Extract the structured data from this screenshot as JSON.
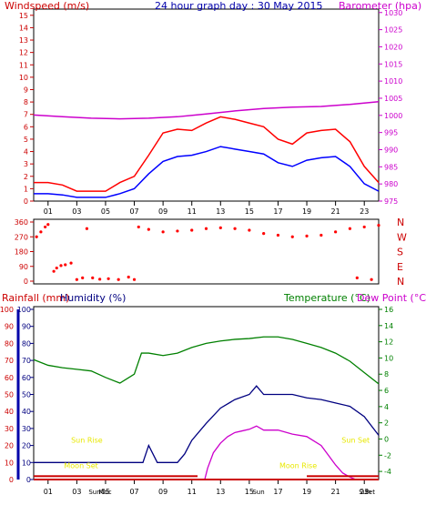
{
  "colors": {
    "wind_high": "#ff0000",
    "wind_avg": "#0000ff",
    "barometer": "#cc00cc",
    "direction": "#ff0000",
    "rain": "#cc0000",
    "humidity": "#000080",
    "temperature": "#008000",
    "dewpoint": "#cc00cc",
    "sun_moon": "#e8e800",
    "axis_blue": "#0000aa",
    "grid": "#c8c8c8"
  },
  "x_ticks": [
    "01",
    "03",
    "05",
    "07",
    "09",
    "11",
    "13",
    "15",
    "17",
    "19",
    "21",
    "23"
  ],
  "chart_data": [
    {
      "type": "line",
      "title": "24 hour graph day : 30 May 2015",
      "y_left_label": "Windspeed (m/s)",
      "y_right_label": "Barometer (hpa)",
      "y_left_ticks": [
        "0",
        "1",
        "2",
        "3",
        "4",
        "5",
        "6",
        "7",
        "8",
        "9",
        "10",
        "11",
        "12",
        "13",
        "14",
        "15"
      ],
      "y_right_ticks": [
        "975",
        "980",
        "985",
        "990",
        "995",
        "1000",
        "1005",
        "1010",
        "1015",
        "1020",
        "1025",
        "1030"
      ],
      "ylim_left": [
        0,
        15.5
      ],
      "ylim_right": [
        975,
        1031
      ],
      "series": [
        {
          "name": "gust",
          "axis": "left",
          "x": [
            0,
            1,
            2,
            3,
            4,
            5,
            6,
            7,
            8,
            9,
            10,
            11,
            12,
            13,
            14,
            15,
            16,
            17,
            18,
            19,
            20,
            21,
            22,
            23,
            24
          ],
          "y": [
            1.5,
            1.5,
            1.3,
            0.8,
            0.8,
            0.8,
            1.5,
            2.0,
            3.7,
            5.5,
            5.8,
            5.7,
            6.3,
            6.8,
            6.6,
            6.3,
            6.0,
            5.0,
            4.6,
            5.5,
            5.7,
            5.8,
            4.8,
            2.8,
            1.5
          ]
        },
        {
          "name": "average",
          "axis": "left",
          "x": [
            0,
            1,
            2,
            3,
            4,
            5,
            6,
            7,
            8,
            9,
            10,
            11,
            12,
            13,
            14,
            15,
            16,
            17,
            18,
            19,
            20,
            21,
            22,
            23,
            24
          ],
          "y": [
            0.6,
            0.6,
            0.5,
            0.3,
            0.3,
            0.3,
            0.6,
            1.0,
            2.2,
            3.2,
            3.6,
            3.7,
            4.0,
            4.4,
            4.2,
            4.0,
            3.8,
            3.1,
            2.8,
            3.3,
            3.5,
            3.6,
            2.8,
            1.4,
            0.8
          ]
        },
        {
          "name": "barometer",
          "axis": "right",
          "x": [
            0,
            2,
            4,
            6,
            8,
            10,
            12,
            14,
            16,
            18,
            20,
            22,
            24
          ],
          "y": [
            1000.1,
            999.6,
            999.2,
            999.0,
            999.2,
            999.6,
            1000.4,
            1001.3,
            1002.0,
            1002.4,
            1002.6,
            1003.2,
            1004.0
          ]
        }
      ]
    },
    {
      "type": "scatter",
      "title": "",
      "y_left_ticks": [
        "0",
        "90",
        "180",
        "270",
        "360"
      ],
      "y_right_ticks": [
        "N",
        "W",
        "S",
        "E",
        "N"
      ],
      "ylim": [
        0,
        360
      ],
      "series": [
        {
          "name": "direction",
          "x": [
            0.2,
            0.5,
            0.8,
            1.0,
            1.4,
            1.6,
            1.9,
            2.2,
            2.6,
            3.0,
            3.4,
            3.7,
            4.1,
            4.6,
            5.2,
            5.9,
            6.6,
            7.0,
            7.3,
            8.0,
            9.0,
            10.0,
            11.0,
            12.0,
            13.0,
            14.0,
            15.0,
            16.0,
            17.0,
            18.0,
            19.0,
            20.0,
            21.0,
            22.0,
            22.5,
            23.0,
            23.5,
            24.0
          ],
          "y": [
            270,
            300,
            330,
            345,
            60,
            80,
            95,
            100,
            110,
            10,
            20,
            320,
            20,
            12,
            15,
            10,
            25,
            10,
            330,
            315,
            300,
            305,
            310,
            320,
            325,
            320,
            310,
            290,
            280,
            270,
            275,
            280,
            300,
            320,
            20,
            330,
            10,
            340
          ]
        }
      ]
    },
    {
      "type": "line",
      "title": "",
      "y_left_labels": [
        "Rainfall (mm)",
        "Humidity (%)"
      ],
      "y_right_labels": [
        "Temperature (°C)",
        "Dew Point (°C)"
      ],
      "y_rain_ticks": [
        "0",
        "10",
        "20",
        "30",
        "40",
        "50",
        "60",
        "70",
        "80",
        "90",
        "100"
      ],
      "y_humidity_ticks": [
        "0",
        "10",
        "20",
        "30",
        "40",
        "50",
        "60",
        "70",
        "80",
        "90",
        "100"
      ],
      "y_temp_ticks": [
        "-4",
        "-2",
        "0",
        "2",
        "4",
        "6",
        "8",
        "10",
        "12",
        "14",
        "16"
      ],
      "ylim_humidity": [
        0,
        100
      ],
      "ylim_temp": [
        -5,
        16
      ],
      "annotations": [
        {
          "text": "Sun Rise",
          "x": 3.7,
          "y": 20
        },
        {
          "text": "Moon Set",
          "x": 3.3,
          "y": 5
        },
        {
          "text": "Sun Set",
          "x": 22.4,
          "y": 20
        },
        {
          "text": "Moon Rise",
          "x": 18.4,
          "y": 5
        }
      ],
      "x_extra_labels": [
        "Sun",
        "Moc",
        "Sun",
        "Sun",
        "Set"
      ],
      "series": [
        {
          "name": "temperature",
          "axis": "temp",
          "x": [
            0,
            1,
            2,
            3,
            4,
            5,
            6,
            7,
            7.5,
            8,
            9,
            10,
            11,
            12,
            13,
            14,
            15,
            16,
            17,
            18,
            19,
            20,
            21,
            22,
            23,
            24
          ],
          "y": [
            9.8,
            9.1,
            8.8,
            8.6,
            8.4,
            7.6,
            6.9,
            8.0,
            10.6,
            10.6,
            10.3,
            10.6,
            11.3,
            11.8,
            12.1,
            12.3,
            12.4,
            12.6,
            12.6,
            12.3,
            11.8,
            11.3,
            10.6,
            9.6,
            8.2,
            6.8
          ]
        },
        {
          "name": "humidity",
          "axis": "humidity",
          "x": [
            0,
            1,
            2,
            3,
            4,
            5,
            6,
            7,
            7.6,
            8,
            8.6,
            9,
            10,
            10.5,
            11,
            12,
            13,
            14,
            15,
            15.5,
            16,
            17,
            18,
            19,
            20,
            21,
            22,
            23,
            24
          ],
          "y": [
            10,
            10,
            10,
            10,
            10,
            10,
            10,
            10,
            10,
            20,
            10,
            10,
            10,
            15,
            23,
            33,
            42,
            47,
            50,
            55,
            50,
            50,
            50,
            48,
            47,
            45,
            43,
            37,
            26
          ]
        },
        {
          "name": "dewpoint",
          "axis": "temp",
          "x": [
            11.9,
            12.1,
            12.5,
            13,
            13.5,
            14,
            14.5,
            15,
            15.5,
            16,
            17,
            18,
            19,
            20,
            20.5,
            21,
            21.5,
            22,
            22.4
          ],
          "y": [
            -5.0,
            -3.6,
            -1.7,
            -0.5,
            0.3,
            0.8,
            1.0,
            1.2,
            1.6,
            1.1,
            1.1,
            0.6,
            0.3,
            -0.8,
            -2.0,
            -3.2,
            -4.2,
            -4.7,
            -5.0
          ]
        },
        {
          "name": "rain",
          "axis": "rain",
          "x": [
            0,
            24
          ],
          "y": [
            0,
            0
          ]
        }
      ]
    }
  ]
}
